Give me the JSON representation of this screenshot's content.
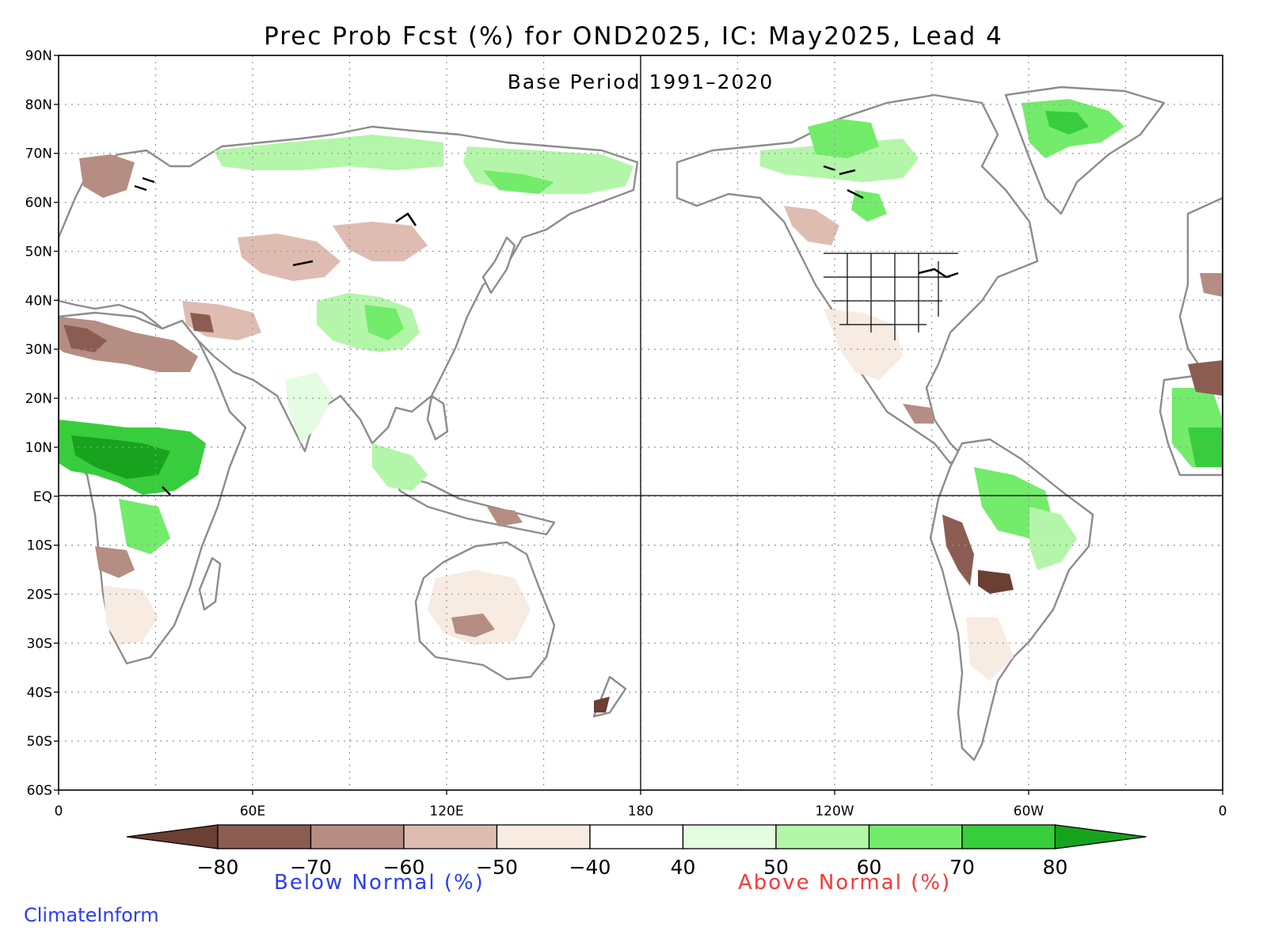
{
  "title": "Prec Prob Fcst (%) for OND2025, IC: May2025, Lead 4",
  "subtitle": "Base Period 1991–2020",
  "map": {
    "lat_labels": [
      "90N",
      "80N",
      "70N",
      "60N",
      "50N",
      "40N",
      "30N",
      "20N",
      "10N",
      "EQ",
      "10S",
      "20S",
      "30S",
      "40S",
      "50S",
      "60S"
    ],
    "lon_labels": [
      "0",
      "60E",
      "120E",
      "180",
      "120W",
      "60W",
      "0"
    ],
    "grid": "dotted",
    "reference_lines": [
      "EQ",
      "180"
    ],
    "coastline_color": "#8c8c8c"
  },
  "colorbar": {
    "tick_labels": [
      "−80",
      "−70",
      "−60",
      "−50",
      "−40",
      "40",
      "50",
      "60",
      "70",
      "80"
    ],
    "colors": [
      "#6b3f33",
      "#8b5d52",
      "#b58d83",
      "#dfbcb2",
      "#f7ebe2",
      "#ffffff",
      "#e4fce1",
      "#b4f6a9",
      "#72ec6a",
      "#38cd3c",
      "#17a31d"
    ],
    "below_label": "Below Normal (%)",
    "above_label": "Above Normal (%)",
    "below_color": "#2b3df5",
    "above_color": "#f43a3a"
  },
  "credit": "ClimateInform"
}
